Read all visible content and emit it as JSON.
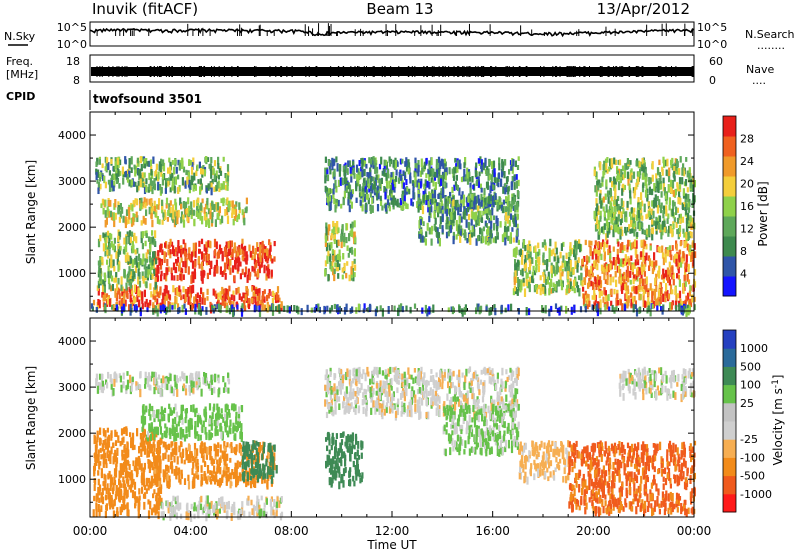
{
  "header": {
    "station": "Inuvik (fitACF)",
    "beam": "Beam 13",
    "date": "13/Apr/2012"
  },
  "noise_panel": {
    "left_label": "N.Sky",
    "right_label": "N.Search",
    "right_line": "........",
    "left_ticks": [
      "10^5",
      "10^0"
    ],
    "right_ticks": [
      "10^5",
      "10^0"
    ]
  },
  "freq_panel": {
    "left_label_1": "Freq.",
    "left_label_2": "[MHz]",
    "right_label": "Nave",
    "right_line": "....",
    "left_ticks": [
      "18",
      "8"
    ],
    "right_ticks": [
      "60",
      "0"
    ]
  },
  "cpid": {
    "label": "CPID",
    "value": "twofsound 3501"
  },
  "x_axis": {
    "label": "Time UT",
    "ticks": [
      "00:00",
      "04:00",
      "08:00",
      "12:00",
      "16:00",
      "20:00",
      "00:00"
    ],
    "range_hours": [
      0,
      24
    ]
  },
  "colors": {
    "power_scale": [
      "#1414ff",
      "#2f55a8",
      "#3e8a4e",
      "#5ea85a",
      "#8fd14a",
      "#f4ce3b",
      "#f09a2a",
      "#f0611f",
      "#e8201a"
    ],
    "velocity_scale": [
      "#ff1a1a",
      "#f05a1d",
      "#f28b1a",
      "#f6ae52",
      "#cfcfcf",
      "#c3c3c3",
      "#66c24a",
      "#3e8a55",
      "#2a6a9a",
      "#2540c0"
    ]
  },
  "chart_data": [
    {
      "type": "line",
      "title": "N.Sky",
      "y_scale": "log",
      "ylim": [
        1,
        100000
      ],
      "series": [
        {
          "name": "N.Sky",
          "x": [
            0,
            1,
            2,
            3,
            4,
            5,
            6,
            7,
            8,
            8.5,
            9,
            9.5,
            10,
            11,
            12,
            13,
            14,
            15,
            16,
            17,
            18,
            19,
            20,
            21,
            22,
            23,
            24
          ],
          "values": [
            2000,
            4000,
            3000,
            2500,
            3000,
            2800,
            2500,
            2300,
            2000,
            1500,
            200,
            600,
            800,
            900,
            1000,
            1100,
            1000,
            900,
            800,
            500,
            400,
            500,
            700,
            900,
            1500,
            2500,
            3000
          ]
        }
      ]
    },
    {
      "type": "line",
      "title": "Freq. [MHz]",
      "ylim": [
        8,
        18
      ],
      "series": [
        {
          "name": "Freq.",
          "x": [
            0,
            24
          ],
          "values": [
            10.5,
            10.5
          ]
        }
      ]
    },
    {
      "type": "heatmap",
      "ylabel": "Slant Range [km]",
      "xlabel": "Time UT",
      "xlim": [
        0,
        24
      ],
      "ylim": [
        180,
        4500
      ],
      "y_ticks": [
        1000,
        2000,
        3000,
        4000
      ],
      "colorbar": {
        "label": "Power [dB]",
        "ticks": [
          4,
          8,
          12,
          16,
          20,
          24,
          28
        ],
        "range": [
          0,
          32
        ]
      },
      "regions": [
        {
          "t": [
            0.1,
            7.6
          ],
          "r": [
            250,
            700
          ],
          "level": 0.85
        },
        {
          "t": [
            2.5,
            7.3
          ],
          "r": [
            900,
            1700
          ],
          "level": 0.92
        },
        {
          "t": [
            0.3,
            2.6
          ],
          "r": [
            700,
            1900
          ],
          "level": 0.45
        },
        {
          "t": [
            0.2,
            5.5
          ],
          "r": [
            2800,
            3500
          ],
          "level": 0.4
        },
        {
          "t": [
            0.4,
            6.2
          ],
          "r": [
            2100,
            2600
          ],
          "level": 0.55
        },
        {
          "t": [
            9.3,
            10.5
          ],
          "r": [
            900,
            2100
          ],
          "level": 0.5
        },
        {
          "t": [
            9.3,
            17.0
          ],
          "r": [
            2400,
            3500
          ],
          "level": 0.3
        },
        {
          "t": [
            13.0,
            17.0
          ],
          "r": [
            1700,
            2700
          ],
          "level": 0.35
        },
        {
          "t": [
            16.8,
            19.5
          ],
          "r": [
            600,
            1700
          ],
          "level": 0.45
        },
        {
          "t": [
            19.5,
            24.0
          ],
          "r": [
            300,
            1700
          ],
          "level": 0.75
        },
        {
          "t": [
            20.0,
            24.0
          ],
          "r": [
            1800,
            3500
          ],
          "level": 0.45
        },
        {
          "t": [
            0,
            24
          ],
          "r": [
            180,
            300
          ],
          "level": 0.25
        }
      ]
    },
    {
      "type": "heatmap",
      "ylabel": "Slant Range [km]",
      "xlabel": "Time UT",
      "xlim": [
        0,
        24
      ],
      "ylim": [
        180,
        4500
      ],
      "y_ticks": [
        1000,
        2000,
        3000,
        4000
      ],
      "colorbar": {
        "label": "Velocity [m s-1]",
        "ticks": [
          -1000,
          -500,
          -100,
          -25,
          25,
          100,
          500,
          1000
        ]
      },
      "regions": [
        {
          "t": [
            0.1,
            2.8
          ],
          "r": [
            250,
            2100
          ],
          "vel": -300
        },
        {
          "t": [
            2.5,
            7.3
          ],
          "r": [
            900,
            1800
          ],
          "vel": -150
        },
        {
          "t": [
            2.8,
            7.6
          ],
          "r": [
            200,
            600
          ],
          "vel": 0
        },
        {
          "t": [
            0.2,
            5.5
          ],
          "r": [
            2900,
            3300
          ],
          "vel": 10
        },
        {
          "t": [
            2.0,
            6.0
          ],
          "r": [
            1900,
            2600
          ],
          "vel": 60
        },
        {
          "t": [
            6.0,
            7.4
          ],
          "r": [
            1000,
            1800
          ],
          "vel": 300
        },
        {
          "t": [
            9.3,
            10.8
          ],
          "r": [
            900,
            2000
          ],
          "vel": 200
        },
        {
          "t": [
            9.3,
            17.0
          ],
          "r": [
            2400,
            3400
          ],
          "vel": 0
        },
        {
          "t": [
            14.0,
            17.0
          ],
          "r": [
            1600,
            2600
          ],
          "vel": 40
        },
        {
          "t": [
            17.0,
            19.0
          ],
          "r": [
            1000,
            1800
          ],
          "vel": -50
        },
        {
          "t": [
            19.0,
            24.0
          ],
          "r": [
            300,
            1800
          ],
          "vel": -600
        },
        {
          "t": [
            21.0,
            24.0
          ],
          "r": [
            2800,
            3400
          ],
          "vel": 5
        }
      ]
    }
  ]
}
